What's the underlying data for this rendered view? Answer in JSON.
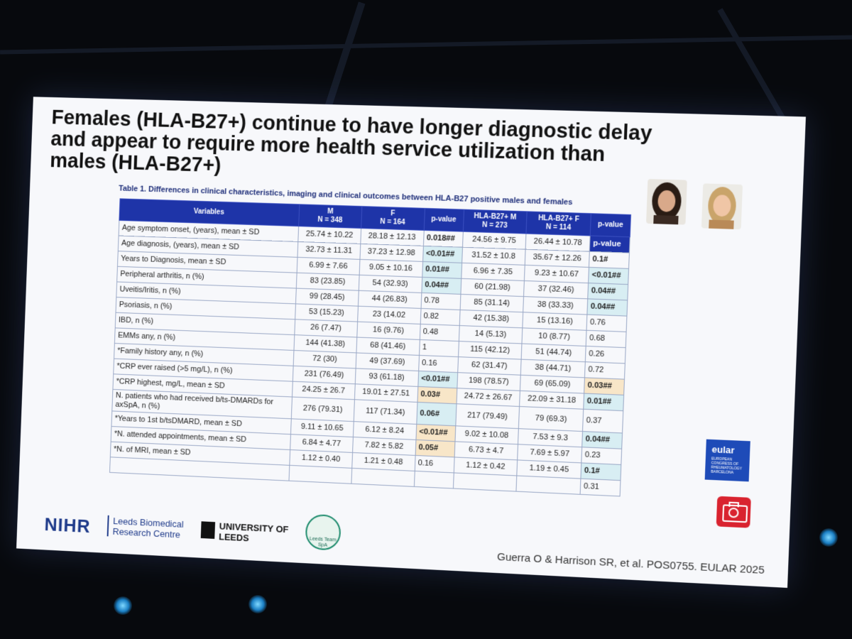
{
  "slide": {
    "title": "Females (HLA-B27+) continue to have longer diagnostic delay and appear to require more health service utilization than males (HLA-B27+)",
    "table_caption": "Table 1. Differences in clinical characteristics, imaging and clinical outcomes between HLA-B27 positive males and females",
    "citation": "Guerra O & Harrison SR, et al. POS0755. EULAR 2025"
  },
  "logos": {
    "nihr": "NIHR",
    "lbrc": "Leeds Biomedical Research Centre",
    "uol": "UNIVERSITY OF LEEDS",
    "ltsp": "Leeds Team SpA",
    "eular": "eular",
    "eular_sub": "EUROPEAN CONGRESS OF RHEUMATOLOGY BARCELONA"
  },
  "table": {
    "headers": {
      "variables": "Variables",
      "m": "M",
      "m_n": "N = 348",
      "f": "F",
      "f_n": "N = 164",
      "p1": "p-value",
      "hm": "HLA-B27+ M",
      "hm_n": "N = 273",
      "hf": "HLA-B27+ F",
      "hf_n": "N = 114",
      "p2": "p-value"
    },
    "rows": [
      {
        "var": "Age symptom onset, (years), mean ± SD",
        "m": "25.74 ± 10.22",
        "f": "28.18 ± 12.13",
        "p1": "0.018##",
        "hm": "24.56 ± 9.75",
        "hf": "26.44 ± 10.78",
        "p2": "p-value"
      },
      {
        "var": "Age diagnosis, (years), mean ± SD",
        "m": "32.73 ± 11.31",
        "f": "37.23 ± 12.98",
        "p1": "<0.01##",
        "hm": "31.52 ± 10.8",
        "hf": "35.67 ± 12.26",
        "p2": "0.1#"
      },
      {
        "var": "Years to Diagnosis, mean ± SD",
        "m": "6.99 ± 7.66",
        "f": "9.05 ± 10.16",
        "p1": "0.01##",
        "hm": "6.96 ± 7.35",
        "hf": "9.23 ± 10.67",
        "p2": "<0.01##"
      },
      {
        "var": "Peripheral arthritis, n (%)",
        "m": "83 (23.85)",
        "f": "54 (32.93)",
        "p1": "0.04##",
        "hm": "60 (21.98)",
        "hf": "37 (32.46)",
        "p2": "0.04##"
      },
      {
        "var": "Uveitis/Iritis, n (%)",
        "m": "99 (28.45)",
        "f": "44 (26.83)",
        "p1": "0.78",
        "hm": "85 (31.14)",
        "hf": "38 (33.33)",
        "p2": "0.04##"
      },
      {
        "var": "Psoriasis, n (%)",
        "m": "53 (15.23)",
        "f": "23 (14.02",
        "p1": "0.82",
        "hm": "42 (15.38)",
        "hf": "15 (13.16)",
        "p2": "0.76"
      },
      {
        "var": "IBD, n (%)",
        "m": "26 (7.47)",
        "f": "16 (9.76)",
        "p1": "0.48",
        "hm": "14 (5.13)",
        "hf": "10 (8.77)",
        "p2": "0.68"
      },
      {
        "var": "EMMs any, n (%)",
        "m": "144 (41.38)",
        "f": "68 (41.46)",
        "p1": "1",
        "hm": "115 (42.12)",
        "hf": "51 (44.74)",
        "p2": "0.26"
      },
      {
        "var": "*Family history any, n (%)",
        "m": "72 (30)",
        "f": "49 (37.69)",
        "p1": "0.16",
        "hm": "62 (31.47)",
        "hf": "38 (44.71)",
        "p2": "0.72"
      },
      {
        "var": "*CRP ever raised (>5 mg/L), n (%)",
        "m": "231 (76.49)",
        "f": "93 (61.18)",
        "p1": "<0.01##",
        "hm": "198 (78.57)",
        "hf": "69 (65.09)",
        "p2": "0.03##"
      },
      {
        "var": "*CRP highest, mg/L, mean ± SD",
        "m": "24.25 ± 26.7",
        "f": "19.01 ± 27.51",
        "p1": "0.03#",
        "hm": "24.72 ± 26.67",
        "hf": "22.09 ± 31.18",
        "p2": "0.01##"
      },
      {
        "var": "N. patients who had received b/ts-DMARDs for axSpA, n (%)",
        "m": "276 (79.31)",
        "f": "117 (71.34)",
        "p1": "0.06#",
        "hm": "217 (79.49)",
        "hf": "79 (69.3)",
        "p2": "0.37"
      },
      {
        "var": "*Years to 1st b/tsDMARD, mean ± SD",
        "m": "9.11 ± 10.65",
        "f": "6.12 ± 8.24",
        "p1": "<0.01##",
        "hm": "9.02 ± 10.08",
        "hf": "7.53 ± 9.3",
        "p2": "0.04##"
      },
      {
        "var": "*N. attended appointments, mean ± SD",
        "m": "6.84 ± 4.77",
        "f": "7.82 ± 5.82",
        "p1": "0.05#",
        "hm": "6.73 ± 4.7",
        "hf": "7.69 ± 5.97",
        "p2": "0.23"
      },
      {
        "var": "*N. of MRI, mean ± SD",
        "m": "1.12 ± 0.40",
        "f": "1.21 ± 0.48",
        "p1": "0.16",
        "hm": "1.12 ± 0.42",
        "hf": "1.19 ± 0.45",
        "p2": "0.1#"
      },
      {
        "var": "",
        "m": "",
        "f": "",
        "p1": "",
        "hm": "",
        "hf": "",
        "p2": "0.31"
      }
    ]
  },
  "colors": {
    "header_blue": "#1e34a8",
    "highlight_orange": "#f8e6c8",
    "highlight_teal": "#d8eef3",
    "nihr_blue": "#1e3a8a",
    "camera_red": "#d9232f"
  }
}
